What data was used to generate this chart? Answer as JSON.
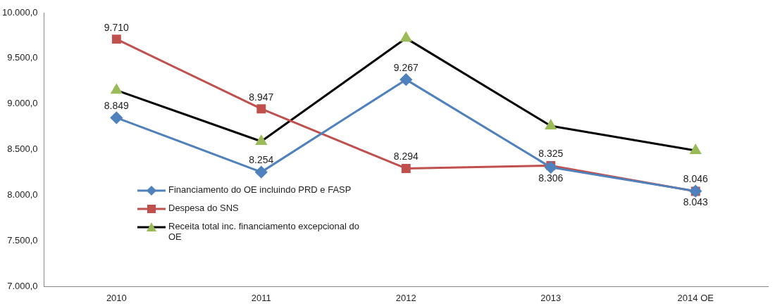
{
  "chart_data": {
    "type": "line",
    "categories": [
      "2010",
      "2011",
      "2012",
      "2013",
      "2014 OE"
    ],
    "series": [
      {
        "name": "Financiamento do OE incluindo PRD e FASP",
        "color": "#4f81bd",
        "marker": "diamond",
        "values": [
          8849,
          8254,
          9267,
          8306,
          8046
        ],
        "value_labels": [
          "8.849",
          "8.254",
          "9.267",
          "8.306",
          "8.046"
        ]
      },
      {
        "name": "Despesa do SNS",
        "color": "#c0504d",
        "marker": "square",
        "values": [
          9710,
          8947,
          8294,
          8325,
          8043
        ],
        "value_labels": [
          "9.710",
          "8.947",
          "8.294",
          "8.325",
          "8.043"
        ]
      },
      {
        "name": "Receita total inc. financiamento excepcional do OE",
        "color": "#000000",
        "marker": "triangle",
        "values": [
          9150,
          8590,
          9720,
          8760,
          8490
        ]
      }
    ],
    "ylim": [
      7000,
      10000
    ],
    "yticks": [
      {
        "value": 7000,
        "label": "7.000,0"
      },
      {
        "value": 7500,
        "label": "7.500,0"
      },
      {
        "value": 8000,
        "label": "8.000,0"
      },
      {
        "value": 8500,
        "label": "8.500,0"
      },
      {
        "value": 9000,
        "label": "9.000,0"
      },
      {
        "value": 9500,
        "label": "9.500,0"
      },
      {
        "value": 10000,
        "label": "10.000,0"
      }
    ],
    "grid": false,
    "legend": "left"
  }
}
